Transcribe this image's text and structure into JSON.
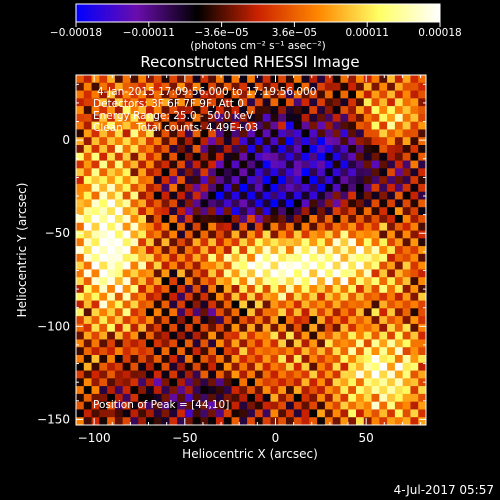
{
  "chart_data": {
    "type": "heatmap",
    "title": "Reconstructed RHESSI Image",
    "xlabel": "Heliocentric X (arcsec)",
    "ylabel": "Heliocentric Y (arcsec)",
    "xlim": [
      -110,
      83
    ],
    "ylim": [
      -153,
      35
    ],
    "x_ticks": [
      -100,
      -50,
      0,
      50
    ],
    "y_ticks": [
      0,
      -50,
      -100,
      -150
    ],
    "x_tick_labels": [
      "−100",
      "−50",
      "0",
      "50"
    ],
    "y_tick_labels": [
      "0",
      "−50",
      "−100",
      "−150"
    ],
    "colorbar": {
      "range": [
        -0.00018,
        0.00018
      ],
      "tick_labels": [
        "−0.00018",
        "−0.00011",
        "−3.6e−05",
        "3.6e−05",
        "0.00011",
        "0.00018"
      ],
      "unit_label": "(photons cm⁻² s⁻¹ asec⁻²)",
      "colors": [
        "#0000ff",
        "#6a0dad",
        "#000000",
        "#cc2200",
        "#ff8800",
        "#ffff66",
        "#ffffff"
      ]
    },
    "annotations": {
      "time_range": "4-Jan-2015 17:09:56.000 to 17:19:56.000",
      "detectors": "Detectors: 3F 6F 7F 9F, Att 0",
      "energy_range": "Energy Range: 25.0 - 50.0 keV",
      "algorithm": "Clean    Total counts: 4.49E+03",
      "peak": "Position of Peak = [44,10]"
    },
    "blobs": [
      {
        "x": -92,
        "y": -52,
        "sx": 14,
        "sy": 30,
        "amp": 0.00018
      },
      {
        "x": 5,
        "y": -68,
        "sx": 38,
        "sy": 12,
        "amp": 0.00016
      },
      {
        "x": 42,
        "y": -62,
        "sx": 16,
        "sy": 14,
        "amp": 5e-05
      },
      {
        "x": 58,
        "y": -125,
        "sx": 18,
        "sy": 18,
        "amp": 0.00014
      },
      {
        "x": 62,
        "y": 10,
        "sx": 14,
        "sy": 13,
        "amp": 0.00013
      },
      {
        "x": -82,
        "y": 10,
        "sx": 14,
        "sy": 14,
        "amp": 6e-05
      },
      {
        "x": -5,
        "y": -115,
        "sx": 18,
        "sy": 14,
        "amp": 5e-05
      },
      {
        "x": 20,
        "y": -8,
        "sx": 40,
        "sy": 18,
        "amp": -0.00013
      },
      {
        "x": -15,
        "y": -32,
        "sx": 28,
        "sy": 10,
        "amp": -9e-05
      },
      {
        "x": -50,
        "y": -140,
        "sx": 28,
        "sy": 12,
        "amp": -8e-05
      },
      {
        "x": -45,
        "y": -82,
        "sx": 14,
        "sy": 18,
        "amp": -7e-05
      }
    ]
  },
  "footer": {
    "timestamp": "4-Jul-2017 05:57"
  }
}
